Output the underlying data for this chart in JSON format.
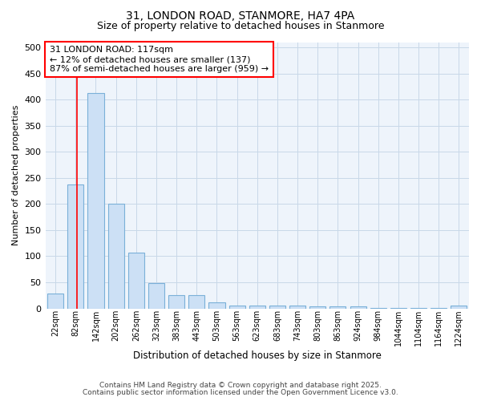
{
  "title": "31, LONDON ROAD, STANMORE, HA7 4PA",
  "subtitle": "Size of property relative to detached houses in Stanmore",
  "xlabel": "Distribution of detached houses by size in Stanmore",
  "ylabel": "Number of detached properties",
  "categories": [
    "22sqm",
    "82sqm",
    "142sqm",
    "202sqm",
    "262sqm",
    "323sqm",
    "383sqm",
    "443sqm",
    "503sqm",
    "563sqm",
    "623sqm",
    "683sqm",
    "743sqm",
    "803sqm",
    "863sqm",
    "924sqm",
    "984sqm",
    "1044sqm",
    "1104sqm",
    "1164sqm",
    "1224sqm"
  ],
  "values": [
    28,
    237,
    413,
    201,
    107,
    48,
    25,
    25,
    11,
    6,
    5,
    5,
    6,
    4,
    4,
    4,
    1,
    1,
    1,
    1,
    5
  ],
  "bar_color": "#cce0f5",
  "bar_edge_color": "#7ab0d8",
  "annotation_text": "31 LONDON ROAD: 117sqm\n← 12% of detached houses are smaller (137)\n87% of semi-detached houses are larger (959) →",
  "annotation_box_color": "white",
  "annotation_box_edge_color": "red",
  "vline_color": "red",
  "ylim": [
    0,
    510
  ],
  "yticks": [
    0,
    50,
    100,
    150,
    200,
    250,
    300,
    350,
    400,
    450,
    500
  ],
  "footer1": "Contains HM Land Registry data © Crown copyright and database right 2025.",
  "footer2": "Contains public sector information licensed under the Open Government Licence v3.0.",
  "plot_bg_color": "#eef4fb",
  "grid_color": "#c8d8e8"
}
